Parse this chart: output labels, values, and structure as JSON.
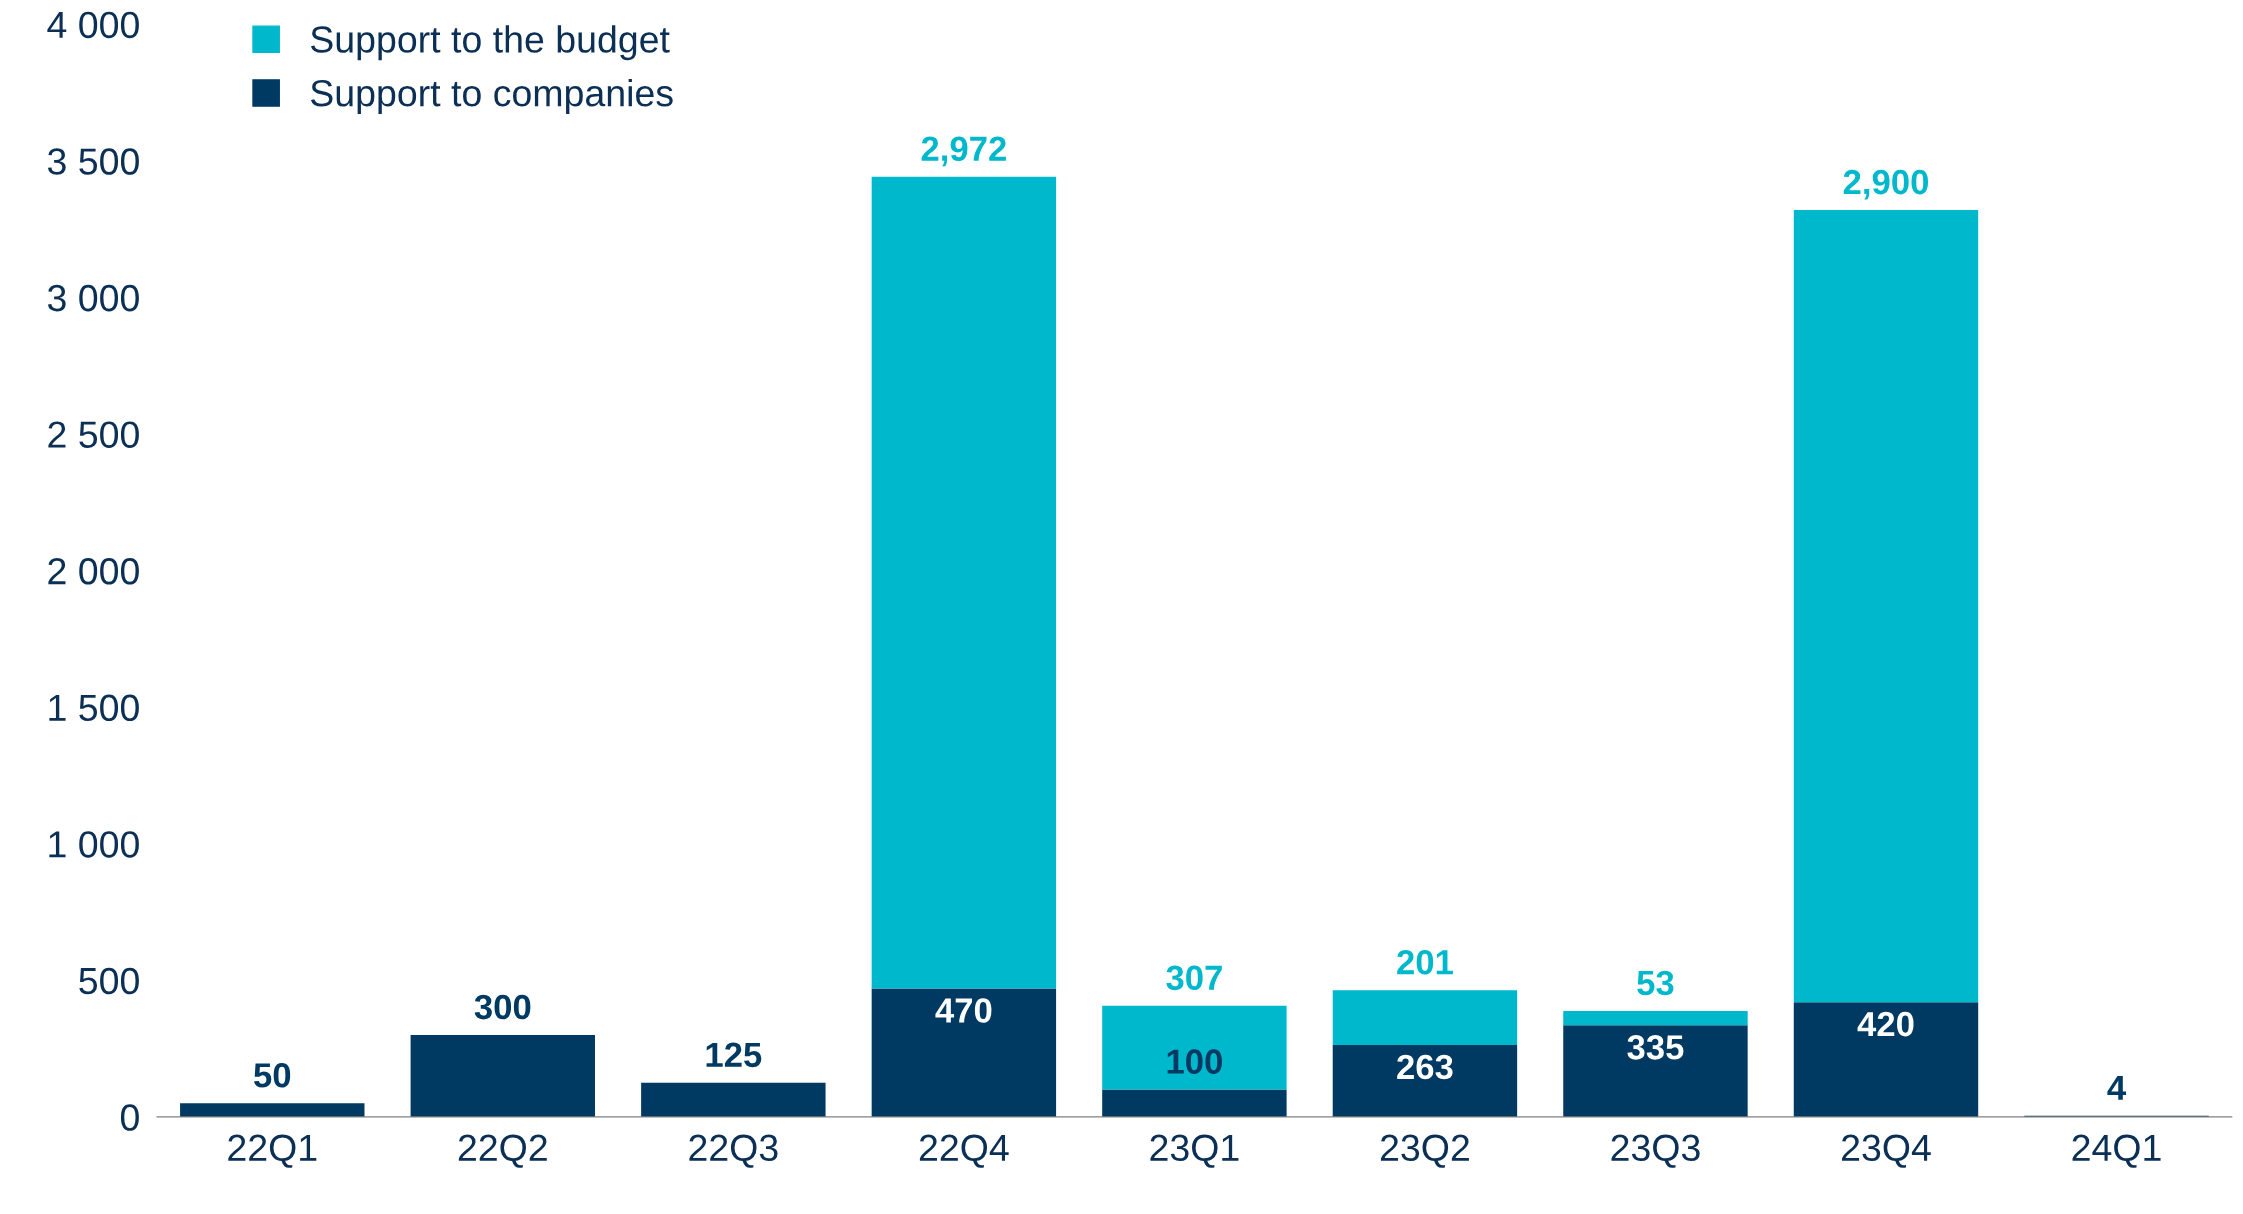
{
  "chart_data": {
    "type": "bar",
    "stacked": true,
    "categories": [
      "22Q1",
      "22Q2",
      "22Q3",
      "22Q4",
      "23Q1",
      "23Q2",
      "23Q3",
      "23Q4",
      "24Q1"
    ],
    "series": [
      {
        "name": "Support to companies",
        "color": "#003a63",
        "values": [
          50,
          300,
          125,
          470,
          100,
          263,
          335,
          420,
          4
        ],
        "value_labels": [
          "50",
          "300",
          "125",
          "470",
          "100",
          "263",
          "335",
          "420",
          "4"
        ]
      },
      {
        "name": "Support to the budget",
        "color": "#00b8cc",
        "values": [
          0,
          0,
          0,
          2972,
          307,
          201,
          53,
          2900,
          0
        ],
        "value_labels": [
          null,
          null,
          null,
          "2,972",
          "307",
          "201",
          "53",
          "2,900",
          null
        ]
      }
    ],
    "ylim": [
      0,
      4000
    ],
    "yticks": [
      {
        "value": 0,
        "label": "0"
      },
      {
        "value": 500,
        "label": "500"
      },
      {
        "value": 1000,
        "label": "1 000"
      },
      {
        "value": 1500,
        "label": "1 500"
      },
      {
        "value": 2000,
        "label": "2 000"
      },
      {
        "value": 2500,
        "label": "2 500"
      },
      {
        "value": 3000,
        "label": "3 000"
      },
      {
        "value": 3500,
        "label": "3 500"
      },
      {
        "value": 4000,
        "label": "4 000"
      }
    ],
    "grid": false,
    "legend": "top left"
  }
}
